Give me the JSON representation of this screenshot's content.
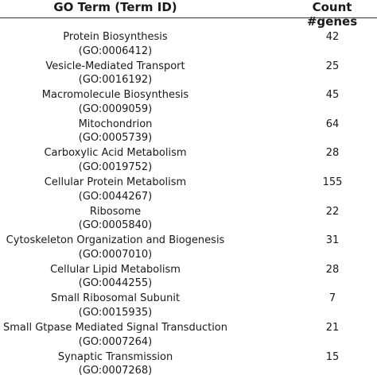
{
  "table": {
    "headers": {
      "term": "GO Term (Term ID)",
      "count": "Count #genes"
    },
    "rows": [
      {
        "name": "Protein Biosynthesis",
        "id": "(GO:0006412)",
        "count": "42"
      },
      {
        "name": "Vesicle-Mediated Transport",
        "id": "(GO:0016192)",
        "count": "25"
      },
      {
        "name": "Macromolecule Biosynthesis",
        "id": "(GO:0009059)",
        "count": "45"
      },
      {
        "name": "Mitochondrion",
        "id": "(GO:0005739)",
        "count": "64"
      },
      {
        "name": "Carboxylic Acid Metabolism",
        "id": "(GO:0019752)",
        "count": "28"
      },
      {
        "name": "Cellular Protein Metabolism",
        "id": "(GO:0044267)",
        "count": "155"
      },
      {
        "name": "Ribosome",
        "id": "(GO:0005840)",
        "count": "22"
      },
      {
        "name": "Cytoskeleton Organization and Biogenesis",
        "id": "(GO:0007010)",
        "count": "31"
      },
      {
        "name": "Cellular Lipid Metabolism",
        "id": "(GO:0044255)",
        "count": "28"
      },
      {
        "name": "Small Ribosomal Subunit",
        "id": "(GO:0015935)",
        "count": "7"
      },
      {
        "name": "Small Gtpase Mediated Signal Transduction",
        "id": "(GO:0007264)",
        "count": "21"
      },
      {
        "name": "Synaptic Transmission",
        "id": "(GO:0007268)",
        "count": "15"
      }
    ]
  }
}
